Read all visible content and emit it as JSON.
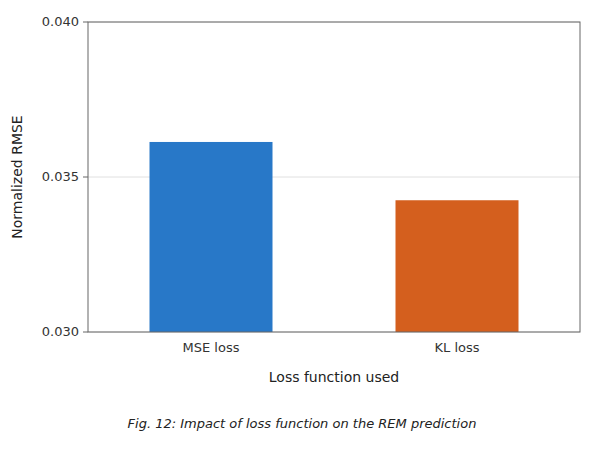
{
  "chart_data": {
    "type": "bar",
    "categories": [
      "MSE loss",
      "KL loss"
    ],
    "values": [
      0.03613,
      0.03425
    ],
    "colors": [
      "#2878c8",
      "#d45f1e"
    ],
    "xlabel": "Loss function used",
    "ylabel": "Normalized RMSE",
    "caption": "Fig. 12: Impact of loss function on the REM prediction",
    "ylim": [
      0.03,
      0.04
    ],
    "yticks": [
      {
        "value": 0.03,
        "label": "0.030"
      },
      {
        "value": 0.035,
        "label": "0.035"
      },
      {
        "value": 0.04,
        "label": "0.040"
      }
    ],
    "grid": true
  }
}
